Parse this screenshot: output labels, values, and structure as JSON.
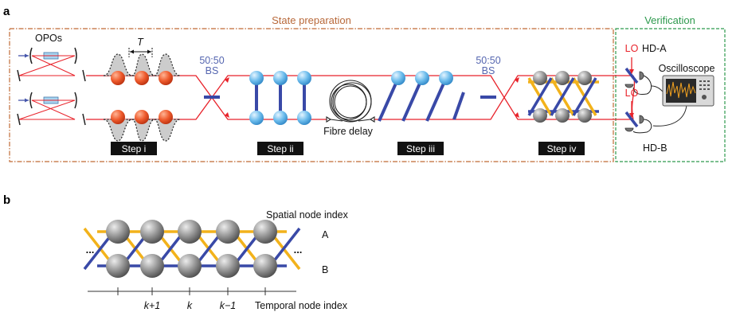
{
  "panel_a": {
    "letter": "a",
    "section_labels": {
      "state_preparation": "State preparation",
      "verification": "Verification"
    },
    "opo_label": "OPOs",
    "period_label": "T",
    "bs1": {
      "ratio": "50:50",
      "label": "BS"
    },
    "bs2": {
      "ratio": "50:50",
      "label": "BS"
    },
    "fibre_delay_label": "Fibre delay",
    "steps": [
      "Step i",
      "Step ii",
      "Step iii",
      "Step iv"
    ],
    "lo_label": "LO",
    "hd_a_label": "HD-A",
    "hd_b_label": "HD-B",
    "oscilloscope_label": "Oscilloscope"
  },
  "panel_b": {
    "letter": "b",
    "spatial_label": "Spatial node index",
    "row_a": "A",
    "row_b": "B",
    "ellipsis": "...",
    "tick_labels": [
      "k+1",
      "k",
      "k−1"
    ],
    "temporal_label": "Temporal node index"
  },
  "colors": {
    "beam": "#e8222a",
    "orange_node": "#e8522a",
    "blue_node": "#5fb5ea",
    "link_blue": "#3949a7",
    "link_orange": "#f2b21b",
    "grey_node": "#8a8a8a",
    "prep_border": "#c06a35",
    "verify_border": "#2e9a4e",
    "bs_label": "#5566b0"
  }
}
